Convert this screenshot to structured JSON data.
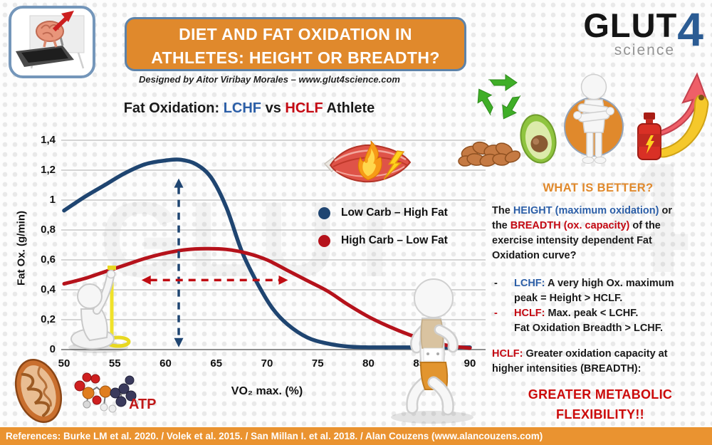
{
  "colors": {
    "black": "#1a1a1a",
    "blue": "#2b5ea7",
    "red": "#c40812",
    "orange": "#e0892c",
    "navy": "#1f4571",
    "gray": "#939393",
    "crimson": "#b5121b"
  },
  "header": {
    "title_line1": "DIET AND FAT OXIDATION IN",
    "title_line2": "ATHLETES: HEIGHT OR BREADTH?",
    "byline": "Designed by Aitor Viribay Morales – www.glut4science.com",
    "logo_glut": "GLUT",
    "logo_four": "4",
    "logo_science": "science"
  },
  "chart_title_segments": [
    {
      "t": "Fat Oxidation: ",
      "c": "black"
    },
    {
      "t": "LCHF",
      "c": "blue"
    },
    {
      "t": " vs ",
      "c": "black"
    },
    {
      "t": "HCLF",
      "c": "red"
    },
    {
      "t": " Athlete",
      "c": "black"
    }
  ],
  "chart_data": {
    "type": "line",
    "title": "Fat Oxidation: LCHF vs HCLF Athlete",
    "xlabel": "VO₂ max. (%)",
    "ylabel": "Fat Ox. (g/min)",
    "xlim": [
      50,
      90
    ],
    "ylim": [
      0,
      1.4
    ],
    "grid": "horizontal",
    "legend_position": "inside right",
    "xticks": [
      "50",
      "55",
      "60",
      "65",
      "70",
      "75",
      "80",
      "85",
      "90"
    ],
    "ytick_values": [
      0,
      0.2,
      0.4,
      0.6,
      0.8,
      1,
      1.2,
      1.4
    ],
    "ytick_labels": [
      "0",
      "0,2",
      "0,4",
      "0,6",
      "0,8",
      "1",
      "1,2",
      "1,4"
    ],
    "series": [
      {
        "name": "Low Carb – High Fat",
        "color": "#1f4571",
        "x": [
          50,
          52,
          54,
          56,
          58,
          60,
          61.5,
          63,
          64.5,
          66,
          67.5,
          69,
          70.5,
          72,
          74,
          76,
          78,
          80,
          83,
          90
        ],
        "y": [
          0.93,
          1.02,
          1.1,
          1.18,
          1.24,
          1.265,
          1.27,
          1.24,
          1.15,
          0.95,
          0.66,
          0.45,
          0.28,
          0.17,
          0.08,
          0.04,
          0.02,
          0.015,
          0.015,
          0.015
        ]
      },
      {
        "name": "High Carb – Low Fat",
        "color": "#b5121b",
        "x": [
          50,
          52,
          54,
          56,
          58,
          60,
          62,
          64,
          66,
          68,
          70,
          72,
          74,
          76,
          78,
          80,
          82,
          84,
          86,
          88,
          90
        ],
        "y": [
          0.44,
          0.475,
          0.52,
          0.565,
          0.61,
          0.645,
          0.668,
          0.675,
          0.67,
          0.645,
          0.6,
          0.53,
          0.46,
          0.39,
          0.3,
          0.22,
          0.155,
          0.1,
          0.055,
          0.025,
          0.01
        ]
      }
    ],
    "annotations": [
      {
        "name": "height-arrow",
        "type": "vline-arrow",
        "x": 61.3,
        "y1": 0.02,
        "y2": 1.14,
        "color": "#1f4571"
      },
      {
        "name": "breadth-arrow",
        "type": "hline-arrow",
        "y": 0.465,
        "x1": 57.7,
        "x2": 72,
        "color": "#c00b12"
      }
    ]
  },
  "right_panel": {
    "heading": "WHAT IS BETTER?",
    "intro_segments": [
      {
        "t": "The ",
        "c": "black"
      },
      {
        "t": "HEIGHT (maximum oxidation)",
        "c": "blue"
      },
      {
        "t": " or\nthe ",
        "c": "black"
      },
      {
        "t": "BREADTH (ox. capacity)",
        "c": "red"
      },
      {
        "t": " of the\nexercise intensity dependent Fat\nOxidation curve?",
        "c": "black"
      }
    ],
    "bullets": [
      {
        "marker": "-",
        "marker_color": "black",
        "segments": [
          {
            "t": "LCHF:",
            "c": "blue"
          },
          {
            "t": " A very high Ox. maximum\npeak = Height > HCLF.",
            "c": "black"
          }
        ]
      },
      {
        "marker": "-",
        "marker_color": "red",
        "segments": [
          {
            "t": "HCLF:",
            "c": "red"
          },
          {
            "t": " Max. peak < LCHF.\nFat Oxidation Breadth > LCHF.",
            "c": "black"
          }
        ]
      }
    ],
    "conclusion_segments": [
      {
        "t": "HCLF:",
        "c": "red"
      },
      {
        "t": " Greater oxidation capacity at\nhigher intensities (BREADTH):",
        "c": "black"
      }
    ],
    "highlight": "GREATER METABOLIC FLEXIBILITY!!"
  },
  "labels": {
    "atp": "ATP"
  },
  "watermark": {
    "text1": "GLUT",
    "text2": "4"
  },
  "footer": {
    "references": "References: Burke LM et al. 2020. / Volek et al. 2015. / San Millan I. et al. 2018. / Alan Couzens (www.alancouzens.com)"
  },
  "icons": {
    "brain-treadmill-icon": "brain running on a treadmill with rising red arrow",
    "recycle-icon": "green recycling arrows",
    "almonds-icon": "pile of almonds",
    "avocado-icon": "halved avocado",
    "athlete-figure-icon": "white figure with crossed arms on orange circle",
    "rising-arrow-icon": "red upward curved arrow",
    "energy-gel-icon": "red energy gel bottle with lightning bolt",
    "banana-icon": "banana",
    "burning-muscle-icon": "muscle with flame and lightning bolt",
    "measuring-figure-icon": "figure measuring curve height with yellow tape",
    "runner-icon": "running figure in orange kit",
    "mitochondria-icon": "mitochondrion cross-section",
    "atp-molecule-icon": "ATP ball-and-stick molecule"
  }
}
